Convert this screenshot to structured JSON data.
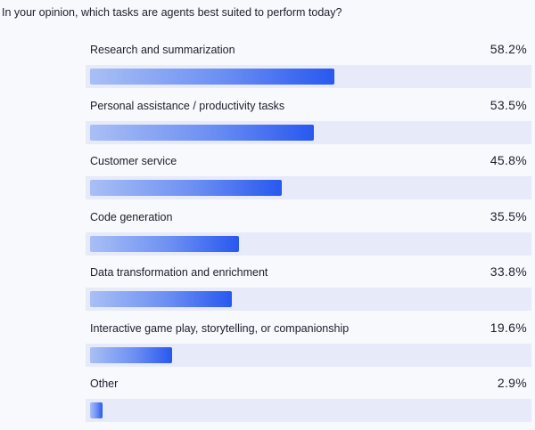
{
  "title": "In your opinion, which tasks are agents best suited to perform today?",
  "chart_data": {
    "type": "bar",
    "orientation": "horizontal",
    "title": "In your opinion, which tasks are agents best suited to perform today?",
    "unit": "%",
    "xlim": [
      0,
      100
    ],
    "categories": [
      "Research and summarization",
      "Personal assistance / productivity tasks",
      "Customer service",
      "Code generation",
      "Data transformation and enrichment",
      "Interactive game play, storytelling, or companionship",
      "Other"
    ],
    "values": [
      58.2,
      53.5,
      45.8,
      35.5,
      33.8,
      19.6,
      2.9
    ],
    "value_labels": [
      "58.2%",
      "53.5%",
      "45.8%",
      "35.5%",
      "33.8%",
      "19.6%",
      "2.9%"
    ],
    "grid": false,
    "legend": "none",
    "colors": {
      "bar_start": "#a9bff5",
      "bar_end": "#2858ef",
      "track": "#e7eaf9",
      "background": "#f8f9fd"
    }
  }
}
